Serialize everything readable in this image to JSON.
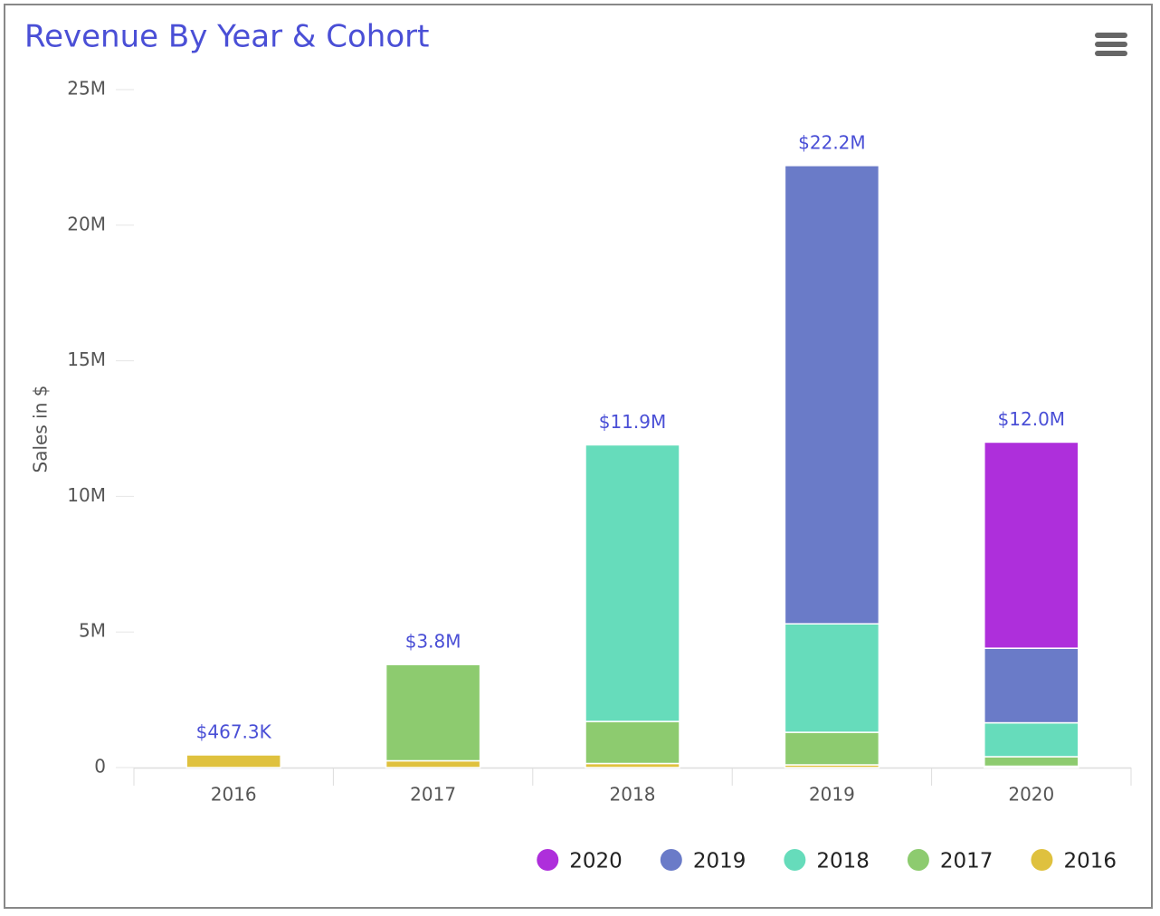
{
  "chart_data": {
    "type": "stacked_bar",
    "title": "Revenue By Year & Cohort",
    "y_label": "Sales in $",
    "categories": [
      "2016",
      "2017",
      "2018",
      "2019",
      "2020"
    ],
    "series": [
      {
        "name": "2016",
        "color": "#dfc13e",
        "values": [
          467300,
          250000,
          150000,
          100000,
          50000
        ]
      },
      {
        "name": "2017",
        "color": "#8dcb6f",
        "values": [
          null,
          3550000,
          1550000,
          1200000,
          350000
        ]
      },
      {
        "name": "2018",
        "color": "#66dcbb",
        "values": [
          null,
          null,
          10200000,
          4000000,
          1250000
        ]
      },
      {
        "name": "2019",
        "color": "#6a7bc8",
        "values": [
          null,
          null,
          null,
          16900000,
          2750000
        ]
      },
      {
        "name": "2020",
        "color": "#ae2fdb",
        "values": [
          null,
          null,
          null,
          null,
          7600000
        ]
      }
    ],
    "totals": [
      467300,
      3800000,
      11900000,
      22200000,
      12000000
    ],
    "total_labels": [
      "$467.3K",
      "$3.8M",
      "$11.9M",
      "$22.2M",
      "$12.0M"
    ],
    "ylim": [
      0,
      25000000
    ],
    "yticks": [
      0,
      {
        "value": 5000000,
        "label": "5M"
      },
      {
        "value": 10000000,
        "label": "10M"
      },
      {
        "value": 15000000,
        "label": "15M"
      },
      {
        "value": 20000000,
        "label": "20M"
      },
      {
        "value": 25000000,
        "label": "25M"
      }
    ],
    "legend": "bottom-right"
  }
}
